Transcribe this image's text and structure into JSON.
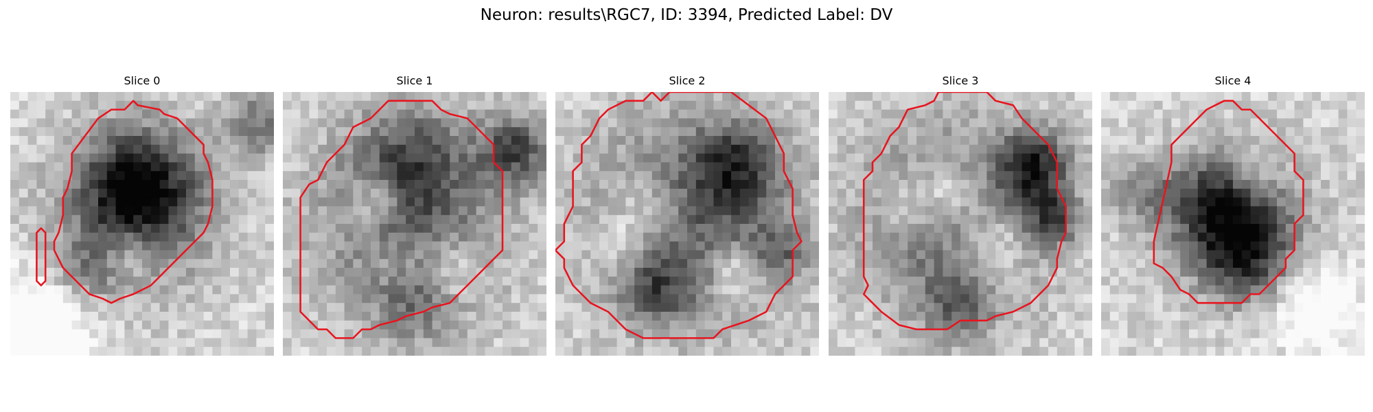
{
  "figure": {
    "title": "Neuron: results\\RGC7, ID: 3394, Predicted Label: DV"
  },
  "contour_color": "#e8141e",
  "panels": [
    {
      "title": "Slice 0"
    },
    {
      "title": "Slice 1"
    },
    {
      "title": "Slice 2"
    },
    {
      "title": "Slice 3"
    },
    {
      "title": "Slice 4"
    }
  ]
}
